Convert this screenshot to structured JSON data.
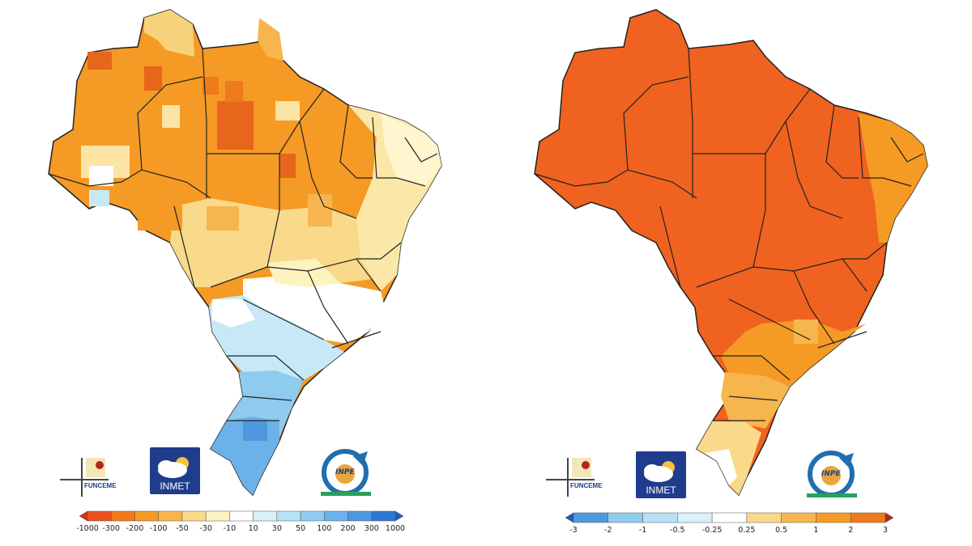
{
  "maps": [
    {
      "id": "precip",
      "title": "",
      "logos": {
        "funceme": "FUNCEME",
        "inmet": "INMET",
        "inpe": "INPE"
      },
      "legend": {
        "labels": [
          "-1000",
          "-300",
          "-200",
          "-100",
          "-50",
          "-30",
          "-10",
          "10",
          "30",
          "50",
          "100",
          "200",
          "300",
          "1000"
        ],
        "colors": [
          "#d7301f",
          "#e8521c",
          "#f07a1a",
          "#f59a25",
          "#f7b64d",
          "#f9d98a",
          "#fdf3c0",
          "#ffffff",
          "#d8f1fb",
          "#b7e2f5",
          "#8ecbef",
          "#6cb2ea",
          "#4f98e0",
          "#2e78d2",
          "#1c5fbf"
        ]
      }
    },
    {
      "id": "temp",
      "title": "",
      "logos": {
        "funceme": "FUNCEME",
        "inmet": "INMET",
        "inpe": "INPE"
      },
      "legend": {
        "labels": [
          "-3",
          "-2",
          "-1",
          "-0.5",
          "-0.25",
          "0.25",
          "0.5",
          "1",
          "2",
          "3"
        ],
        "colors": [
          "#1c5fbf",
          "#4f98e0",
          "#8ecbef",
          "#b7e2f5",
          "#d8f1fb",
          "#ffffff",
          "#f9d98a",
          "#f7b64d",
          "#f59a25",
          "#f07a1a",
          "#b3261e"
        ]
      }
    }
  ]
}
